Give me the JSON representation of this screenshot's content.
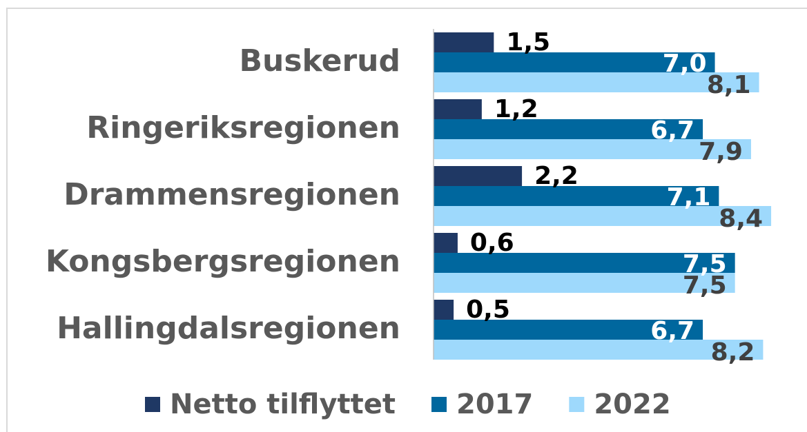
{
  "chart_data": {
    "type": "bar",
    "orientation": "horizontal",
    "categories": [
      "Buskerud",
      "Ringeriksregionen",
      "Drammensregionen",
      "Kongsbergsregionen",
      "Hallingdalsregionen"
    ],
    "series": [
      {
        "name": "Netto tilflyttet",
        "color": "#1f3864",
        "values": [
          1.5,
          1.2,
          2.2,
          0.6,
          0.5
        ],
        "value_labels": [
          "1,5",
          "1,2",
          "2,2",
          "0,6",
          "0,5"
        ]
      },
      {
        "name": "2017",
        "color": "#00679e",
        "values": [
          7.0,
          6.7,
          7.1,
          7.5,
          6.7
        ],
        "value_labels": [
          "7,0",
          "6,7",
          "7,1",
          "7,5",
          "6,7"
        ]
      },
      {
        "name": "2022",
        "color": "#9ed9fc",
        "values": [
          8.1,
          7.9,
          8.4,
          7.5,
          8.2
        ],
        "value_labels": [
          "8,1",
          "7,9",
          "8,4",
          "7,5",
          "8,2"
        ]
      }
    ],
    "xlim": [
      0,
      9
    ],
    "legend": "bottom"
  }
}
